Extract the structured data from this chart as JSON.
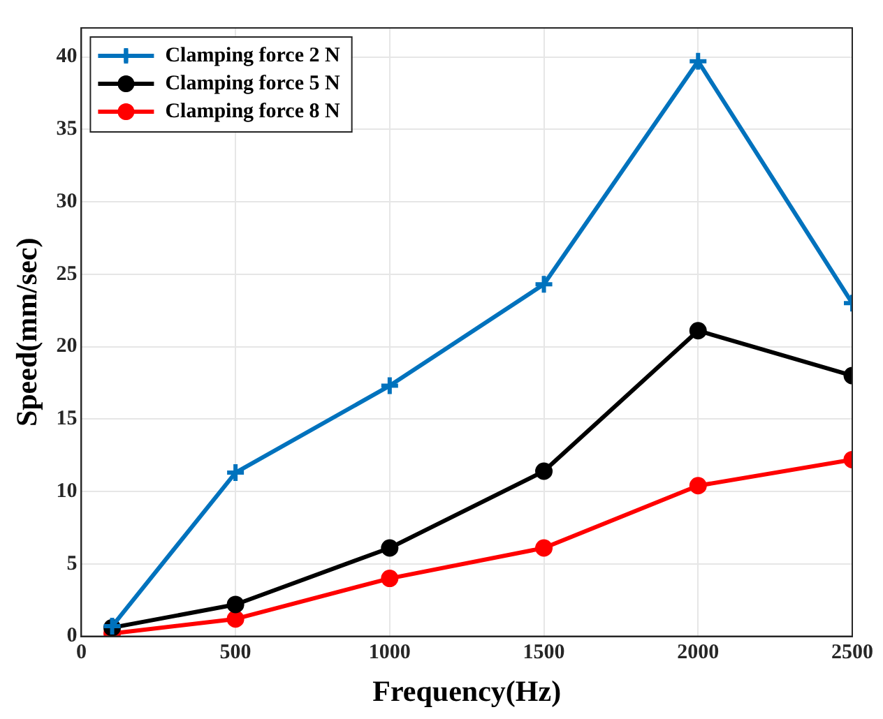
{
  "chart_data": {
    "type": "line",
    "xlabel": "Frequency(Hz)",
    "ylabel": "Speed(mm/sec)",
    "x": [
      100,
      500,
      1000,
      1500,
      2000,
      2500
    ],
    "series": [
      {
        "name": "Clamping force 2 N",
        "color": "#0072bd",
        "marker": "cross",
        "values": [
          0.7,
          11.3,
          17.3,
          24.3,
          39.7,
          23.0
        ]
      },
      {
        "name": "Clamping force 5 N",
        "color": "#000000",
        "marker": "circle",
        "values": [
          0.6,
          2.2,
          6.1,
          11.4,
          21.1,
          18.0
        ]
      },
      {
        "name": "Clamping force 8 N",
        "color": "#ff0000",
        "marker": "circle",
        "values": [
          0.2,
          1.2,
          4.0,
          6.1,
          10.4,
          12.2
        ]
      }
    ],
    "xlim": [
      0,
      2500
    ],
    "xticks": [
      0,
      500,
      1000,
      1500,
      2000,
      2500
    ],
    "ylim": [
      0,
      42
    ],
    "yticks": [
      0,
      5,
      10,
      15,
      20,
      25,
      30,
      35,
      40
    ],
    "grid": true,
    "legend": "top left",
    "line_style": "solid"
  }
}
